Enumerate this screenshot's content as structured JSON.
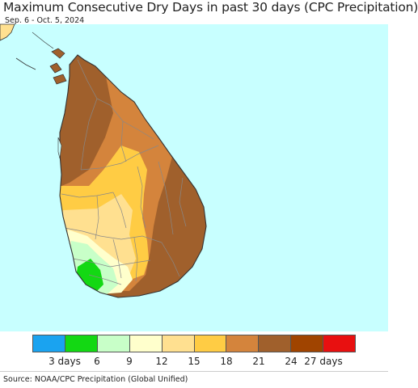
{
  "title": "Maximum Consecutive Dry Days in past 30 days (CPC Precipitation)",
  "subtitle": "Sep. 6 - Oct. 5, 2024",
  "source": "Source: NOAA/CPC Precipitation (Global Unified)",
  "colors": {
    "ocean": "#c8ffff",
    "boundary": "#888888",
    "coast": "#333333"
  },
  "legend": {
    "colors": [
      "#1aa3f0",
      "#13d813",
      "#c8ffc8",
      "#ffffcc",
      "#ffe090",
      "#ffcc44",
      "#d4843c",
      "#a0602c",
      "#a04400",
      "#e81010"
    ],
    "labels": [
      "3 days",
      "6",
      "9",
      "12",
      "15",
      "18",
      "21",
      "24",
      "27 days"
    ]
  }
}
